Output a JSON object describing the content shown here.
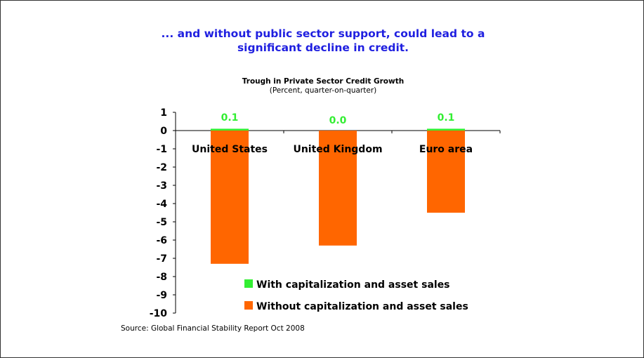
{
  "headline": {
    "line1": "... and without public sector support, could lead to a",
    "line2": "significant decline in credit."
  },
  "source": "Source: Global Financial Stability Report Oct 2008",
  "colors": {
    "headline": "#1f1fe0",
    "with": "#33ee33",
    "without": "#ff6600",
    "label_green": "#33ee33"
  },
  "chart_data": {
    "type": "bar",
    "title": "Trough in Private Sector Credit Growth",
    "subtitle": "(Percent, quarter-on-quarter)",
    "categories": [
      "United States",
      "United Kingdom",
      "Euro area"
    ],
    "series": [
      {
        "name": "With capitalization and asset sales",
        "values": [
          0.1,
          0.0,
          0.1
        ],
        "data_labels": [
          "0.1",
          "0.0",
          "0.1"
        ]
      },
      {
        "name": "Without capitalization and asset sales",
        "values": [
          -7.3,
          -6.3,
          -4.5
        ]
      }
    ],
    "ylim": [
      -10,
      1
    ],
    "yticks": [
      "1",
      "0",
      "-1",
      "-2",
      "-3",
      "-4",
      "-5",
      "-6",
      "-7",
      "-8",
      "-9",
      "-10"
    ],
    "grid": false,
    "legend_position": "bottom-right"
  }
}
